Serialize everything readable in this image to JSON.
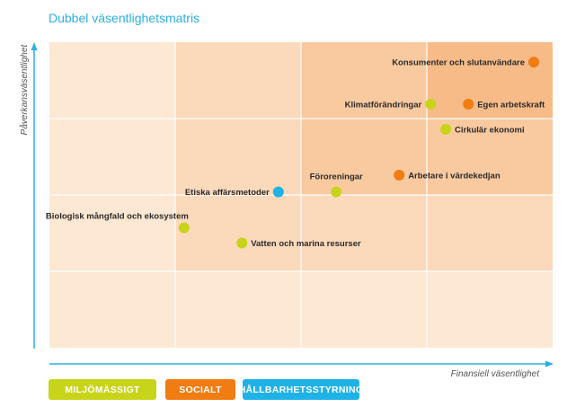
{
  "title": "Dubbel väsentlighetsmatris",
  "colors": {
    "environment": "#c8d41a",
    "social": "#f07c12",
    "governance": "#1fb2e6",
    "axis": "#2bb0e3"
  },
  "legend": [
    {
      "key": "environment",
      "label": "MILJÖMÄSSIGT"
    },
    {
      "key": "social",
      "label": "SOCIALT"
    },
    {
      "key": "governance",
      "label": "HÅLLBARHETSSTYRNING"
    }
  ],
  "chart_data": {
    "type": "scatter",
    "title": "Dubbel väsentlighetsmatris",
    "xlabel": "Finansiell väsentlighet",
    "ylabel": "Påverkansväsentlighet",
    "xlim": [
      0,
      4
    ],
    "ylim": [
      0,
      4
    ],
    "grid": true,
    "legend_position": "bottom-left",
    "points": [
      {
        "label": "Konsumenter och slutanvändare",
        "category": "social",
        "x": 3.85,
        "y": 3.74,
        "label_side": "left"
      },
      {
        "label": "Klimatförändringar",
        "category": "environment",
        "x": 3.03,
        "y": 3.19,
        "label_side": "left"
      },
      {
        "label": "Egen arbetskraft",
        "category": "social",
        "x": 3.33,
        "y": 3.19,
        "label_side": "right"
      },
      {
        "label": "Cirkulär ekonomi",
        "category": "environment",
        "x": 3.15,
        "y": 2.86,
        "label_side": "right"
      },
      {
        "label": "Arbetare i värdekedjan",
        "category": "social",
        "x": 2.78,
        "y": 2.26,
        "label_side": "right"
      },
      {
        "label": "Föroreningar",
        "category": "environment",
        "x": 2.28,
        "y": 2.04,
        "label_side": "above"
      },
      {
        "label": "Etiska affärsmetoder",
        "category": "governance",
        "x": 1.82,
        "y": 2.04,
        "label_side": "left"
      },
      {
        "label": "Biologisk mångfald och ekosystem",
        "category": "environment",
        "x": 1.07,
        "y": 1.57,
        "label_side": "above-left"
      },
      {
        "label": "Vatten och marina resurser",
        "category": "environment",
        "x": 1.53,
        "y": 1.37,
        "label_side": "right"
      }
    ]
  }
}
